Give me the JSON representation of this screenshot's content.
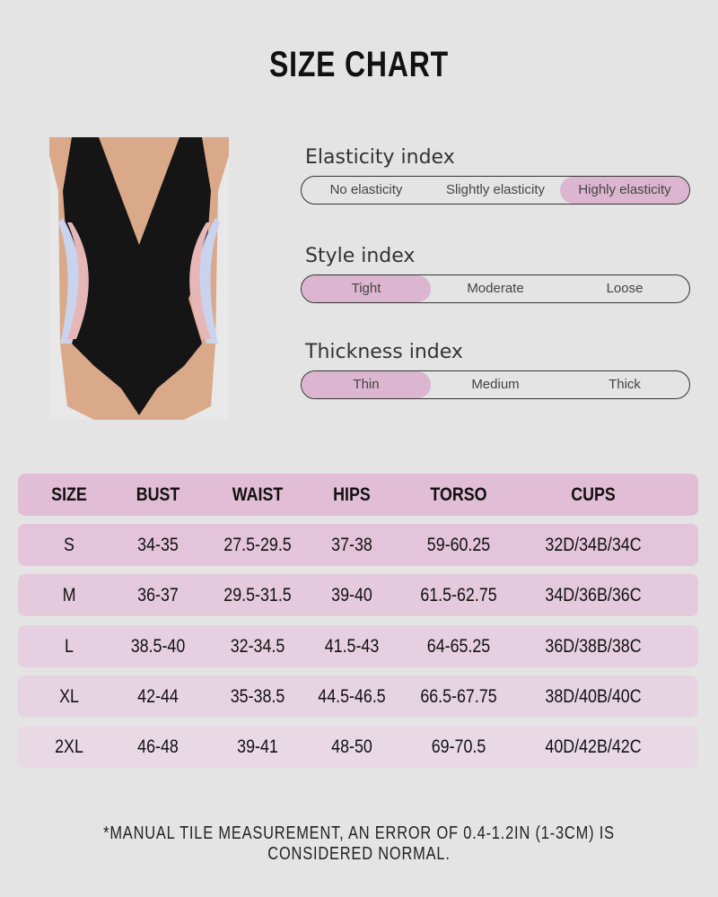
{
  "title": "SIZE CHART",
  "indices": [
    {
      "label": "Elasticity index",
      "options": [
        "No elasticity",
        "Slightly elasticity",
        "Highly elasticity"
      ],
      "selected": 2
    },
    {
      "label": "Style index",
      "options": [
        "Tight",
        "Moderate",
        "Loose"
      ],
      "selected": 0
    },
    {
      "label": "Thickness index",
      "options": [
        "Thin",
        "Medium",
        "Thick"
      ],
      "selected": 0
    }
  ],
  "table": {
    "headers": [
      "SIZE",
      "BUST",
      "WAIST",
      "HIPS",
      "TORSO",
      "CUPS"
    ],
    "rows": [
      [
        "S",
        "34-35",
        "27.5-29.5",
        "37-38",
        "59-60.25",
        "32D/34B/34C"
      ],
      [
        "M",
        "36-37",
        "29.5-31.5",
        "39-40",
        "61.5-62.75",
        "34D/36B/36C"
      ],
      [
        "L",
        "38.5-40",
        "32-34.5",
        "41.5-43",
        "64-65.25",
        "36D/38B/38C"
      ],
      [
        "XL",
        "42-44",
        "35-38.5",
        "44.5-46.5",
        "66.5-67.75",
        "38D/40B/40C"
      ],
      [
        "2XL",
        "46-48",
        "39-41",
        "48-50",
        "69-70.5",
        "40D/42B/42C"
      ]
    ],
    "colors": {
      "header": "#e2bdd6",
      "rows": [
        "#e4c4da",
        "#e5c9dd",
        "#e6cfe0",
        "#e7d4e3",
        "#e8d9e5"
      ]
    }
  },
  "note": "*MANUAL TILE MEASUREMENT, AN ERROR OF 0.4-1.2IN (1-3CM) IS CONSIDERED NORMAL."
}
